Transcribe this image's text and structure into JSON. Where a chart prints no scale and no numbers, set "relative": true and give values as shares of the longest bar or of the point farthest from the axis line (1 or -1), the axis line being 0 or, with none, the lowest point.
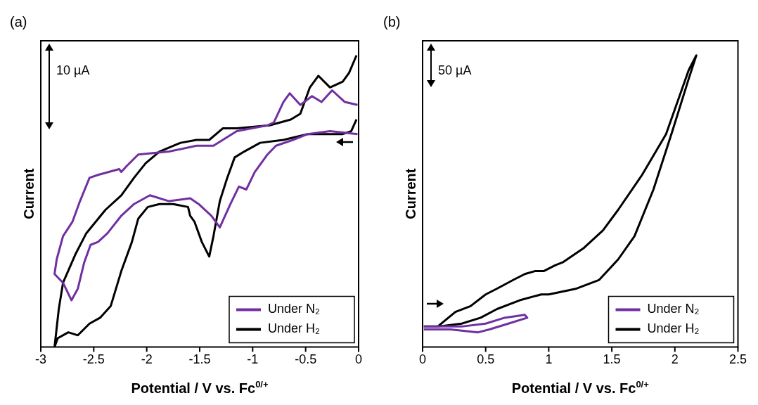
{
  "chart_data": [
    {
      "type": "line",
      "title": "(a)",
      "xlabel": "Potential / V vs. Fc$^{0/+}$",
      "ylabel": "Current",
      "relative": true,
      "xlim": [
        -3,
        0
      ],
      "xticks": [
        -3,
        -2.5,
        -2,
        -1.5,
        -1,
        -0.5,
        0
      ],
      "legend": "bottom right",
      "annotations": [
        "10 µA"
      ],
      "series": [
        {
          "name": "Under N₂",
          "color": "#7030a0",
          "x": [
            -0.01,
            -0.27,
            -0.48,
            -0.62,
            -0.78,
            -0.86,
            -0.98,
            -1.06,
            -1.13,
            -1.21,
            -1.31,
            -1.39,
            -1.51,
            -1.59,
            -1.79,
            -1.97,
            -2.12,
            -2.24,
            -2.37,
            -2.46,
            -2.53,
            -2.59,
            -2.65,
            -2.71,
            -2.79,
            -2.87,
            -2.85,
            -2.79,
            -2.7,
            -2.63,
            -2.54,
            -2.46,
            -2.26,
            -2.24,
            -2.19,
            -2.08,
            -1.79,
            -1.53,
            -1.37,
            -1.15,
            -0.86,
            -0.8,
            -0.71,
            -0.65,
            -0.55,
            -0.44,
            -0.35,
            -0.25,
            -0.13,
            -0.01
          ],
          "values": [
            0.73,
            0.74,
            0.73,
            0.71,
            0.69,
            0.66,
            0.6,
            0.54,
            0.55,
            0.49,
            0.41,
            0.45,
            0.49,
            0.51,
            0.5,
            0.52,
            0.49,
            0.45,
            0.39,
            0.36,
            0.35,
            0.29,
            0.2,
            0.16,
            0.22,
            0.25,
            0.3,
            0.38,
            0.43,
            0.5,
            0.58,
            0.59,
            0.61,
            0.6,
            0.62,
            0.66,
            0.67,
            0.69,
            0.69,
            0.74,
            0.76,
            0.77,
            0.84,
            0.87,
            0.83,
            0.86,
            0.84,
            0.88,
            0.84,
            0.83
          ]
        },
        {
          "name": "Under H₂",
          "color": "#000000",
          "x": [
            -0.02,
            -0.07,
            -0.15,
            -0.48,
            -0.71,
            -0.93,
            -1.08,
            -1.17,
            -1.24,
            -1.31,
            -1.37,
            -1.41,
            -1.48,
            -1.55,
            -1.59,
            -1.61,
            -1.75,
            -1.79,
            -1.88,
            -1.99,
            -2.08,
            -2.14,
            -2.24,
            -2.34,
            -2.44,
            -2.54,
            -2.65,
            -2.74,
            -2.84,
            -2.87,
            -2.83,
            -2.79,
            -2.67,
            -2.57,
            -2.39,
            -2.24,
            -2.12,
            -2.01,
            -1.88,
            -1.68,
            -1.53,
            -1.41,
            -1.28,
            -1.15,
            -0.84,
            -0.64,
            -0.55,
            -0.46,
            -0.38,
            -0.27,
            -0.15,
            -0.09,
            -0.02
          ],
          "values": [
            0.78,
            0.74,
            0.73,
            0.73,
            0.71,
            0.7,
            0.67,
            0.65,
            0.58,
            0.5,
            0.38,
            0.31,
            0.36,
            0.43,
            0.45,
            0.48,
            0.49,
            0.49,
            0.49,
            0.48,
            0.44,
            0.36,
            0.26,
            0.14,
            0.1,
            0.08,
            0.04,
            0.05,
            0.03,
            0,
            0.13,
            0.22,
            0.32,
            0.39,
            0.47,
            0.52,
            0.58,
            0.63,
            0.67,
            0.7,
            0.71,
            0.71,
            0.75,
            0.75,
            0.76,
            0.78,
            0.8,
            0.89,
            0.93,
            0.89,
            0.91,
            0.94,
            1
          ]
        }
      ]
    },
    {
      "type": "line",
      "title": "(b)",
      "xlabel": "Potential / V vs. Fc$^{0/+}$",
      "ylabel": "Current",
      "relative": true,
      "xlim": [
        0,
        2.5
      ],
      "xticks": [
        0,
        0.5,
        1,
        1.5,
        2,
        2.5
      ],
      "legend": "bottom right",
      "annotations": [
        "50 µA"
      ],
      "series": [
        {
          "name": "Under N₂",
          "color": "#7030a0",
          "x": [
            0.01,
            0.31,
            0.5,
            0.65,
            0.81,
            0.83,
            0.68,
            0.53,
            0.44,
            0.22,
            0.01
          ],
          "values": [
            0.07,
            0.07,
            0.08,
            0.1,
            0.11,
            0.1,
            0.08,
            0.06,
            0.05,
            0.06,
            0.06
          ]
        },
        {
          "name": "Under H₂",
          "color": "#000000",
          "x": [
            0.01,
            0.12,
            0.26,
            0.38,
            0.5,
            0.59,
            0.72,
            0.81,
            0.89,
            0.96,
            1.05,
            1.11,
            1.28,
            1.43,
            1.55,
            1.74,
            1.93,
            2.11,
            2.17,
            2.11,
            1.98,
            1.83,
            1.68,
            1.55,
            1.4,
            1.22,
            1,
            0.94,
            0.77,
            0.59,
            0.46,
            0.31,
            0.12,
            0.02
          ],
          "values": [
            0.07,
            0.07,
            0.12,
            0.14,
            0.18,
            0.2,
            0.23,
            0.25,
            0.26,
            0.26,
            0.28,
            0.29,
            0.34,
            0.4,
            0.47,
            0.59,
            0.73,
            0.95,
            1,
            0.92,
            0.74,
            0.54,
            0.38,
            0.3,
            0.23,
            0.2,
            0.18,
            0.18,
            0.16,
            0.13,
            0.1,
            0.08,
            0.07,
            0.07
          ]
        }
      ]
    }
  ]
}
